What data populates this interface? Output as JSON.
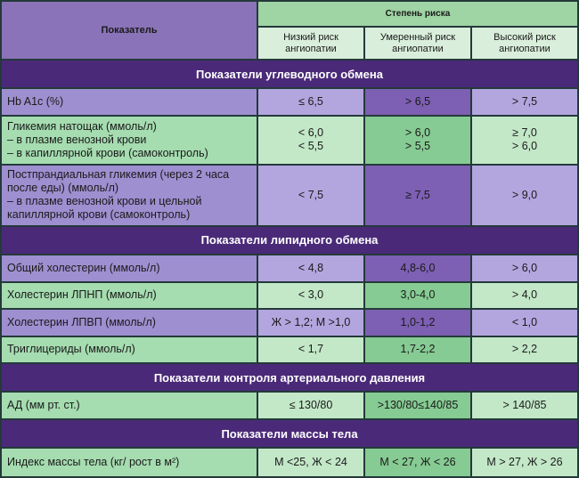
{
  "header": {
    "indicator": "Показатель",
    "risk": "Степень риска",
    "low_l1": "Низкий риск",
    "low_l2": "ангиопатии",
    "mod_l1": "Умеренный риск",
    "mod_l2": "ангиопатии",
    "high_l1": "Высокий риск",
    "high_l2": "ангиопатии"
  },
  "sections": {
    "carb": "Показатели углеводного обмена",
    "lipid": "Показатели липидного обмена",
    "bp": "Показатели контроля артериального давления",
    "bmi": "Показатели массы тела"
  },
  "rows": {
    "hba1c": {
      "label": "Hb A1c (%)",
      "low": "≤ 6,5",
      "mod": "> 6,5",
      "high": "> 7,5"
    },
    "fasting": {
      "l1": "Гликемия натощак (ммоль/л)",
      "l2": "– в плазме венозной крови",
      "l3": "– в капиллярной крови (самоконтроль)",
      "low1": "< 6,0",
      "low2": "< 5,5",
      "mod1": "> 6,0",
      "mod2": "> 5,5",
      "high1": "≥ 7,0",
      "high2": "> 6,0"
    },
    "postprandial": {
      "l1": "Постпрандиальная гликемия (через 2 часа",
      "l2": "после еды) (ммоль/л)",
      "l3": "– в плазме венозной крови и цельной",
      "l4": "капиллярной крови (самоконтроль)",
      "low": "< 7,5",
      "mod": "≥ 7,5",
      "high": "> 9,0"
    },
    "chol": {
      "label": "Общий холестерин (ммоль/л)",
      "low": "< 4,8",
      "mod": "4,8-6,0",
      "high": "> 6,0"
    },
    "ldl": {
      "label": "Холестерин ЛПНП (ммоль/л)",
      "low": "< 3,0",
      "mod": "3,0-4,0",
      "high": "> 4,0"
    },
    "hdl": {
      "label": "Холестерин ЛПВП (ммоль/л)",
      "low": "Ж > 1,2; М >1,0",
      "mod": "1,0-1,2",
      "high": "< 1,0"
    },
    "tg": {
      "label": "Триглицериды (ммоль/л)",
      "low": "< 1,7",
      "mod": "1,7-2,2",
      "high": "> 2,2"
    },
    "bp": {
      "label": "АД (мм рт. ст.)",
      "low": "≤ 130/80",
      "mod": ">130/80≤140/85",
      "high": "> 140/85"
    },
    "bmi": {
      "label": "Индекс массы тела (кг/ рост в м²)",
      "low": "М <25, Ж < 24",
      "mod": "М < 27, Ж < 26",
      "high": "М > 27, Ж > 26"
    }
  }
}
